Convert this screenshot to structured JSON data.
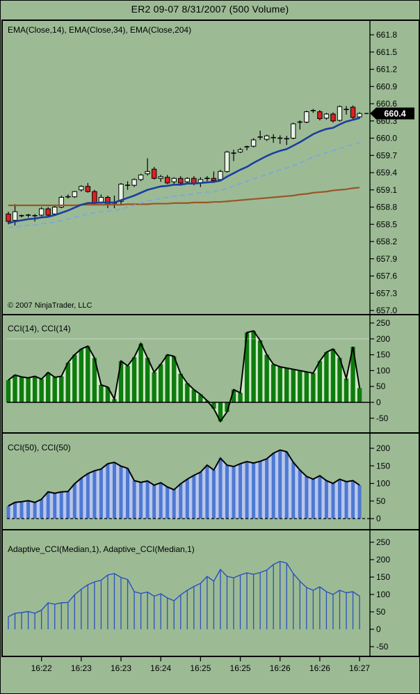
{
  "title": "ER2 09-07  8/31/2007  (500 Volume)",
  "price_panel": {
    "label": "EMA(Close,14), EMA(Close,34), EMA(Close,204)",
    "copyright": "© 2007 NinjaTrader, LLC",
    "last_price_label": "660.4"
  },
  "cci14_panel": {
    "label": "CCI(14), CCI(14)"
  },
  "cci50_panel": {
    "label": "CCI(50), CCI(50)"
  },
  "adaptive_panel": {
    "label": "Adaptive_CCI(Median,1), Adaptive_CCI(Median,1)"
  },
  "x_axis": {
    "labels": [
      "16:22",
      "16:23",
      "16:23",
      "16:24",
      "16:25",
      "16:25",
      "16:26",
      "16:26",
      "16:27"
    ],
    "tick_bars": [
      5,
      11,
      17,
      23,
      29,
      35,
      41,
      47,
      53
    ]
  },
  "colors": {
    "background": "#9cbb95",
    "candle_up": "#e8f3e5",
    "candle_down": "#dd2222",
    "outline": "#000000",
    "ema14": "#1a3e9e",
    "ema34": "#7fa8d9",
    "ema204": "#9a5526",
    "cci14_bar": "#0e7c0e",
    "cci14_area": "#cfe8c6",
    "cci50_bar": "#4d79d2",
    "cci50_area": "#b9c6ea",
    "adaptive": "#2a4fc0",
    "marker_bg": "#000000",
    "marker_text": "#ffffff"
  },
  "chart_data": [
    {
      "type": "candlestick",
      "title": "ER2 09-07 price with EMAs",
      "ylim": [
        657.0,
        661.8
      ],
      "yticks": [
        661.8,
        661.5,
        661.2,
        660.9,
        660.6,
        660.3,
        660.0,
        659.7,
        659.4,
        659.1,
        658.8,
        658.5,
        658.2,
        657.9,
        657.6,
        657.3,
        657.0
      ],
      "last_price": 660.4,
      "candles": [
        [
          658.68,
          658.72,
          658.5,
          658.55
        ],
        [
          658.57,
          658.85,
          658.48,
          658.72
        ],
        [
          658.65,
          658.67,
          658.62,
          658.65
        ],
        [
          658.65,
          658.68,
          658.62,
          658.66
        ],
        [
          658.66,
          658.68,
          658.55,
          658.65
        ],
        [
          658.66,
          658.8,
          658.64,
          658.77
        ],
        [
          658.77,
          658.8,
          658.63,
          658.66
        ],
        [
          658.68,
          658.82,
          658.66,
          658.8
        ],
        [
          658.8,
          659.0,
          658.78,
          658.97
        ],
        [
          658.98,
          659.02,
          658.95,
          658.98
        ],
        [
          658.98,
          659.08,
          658.96,
          659.07
        ],
        [
          659.1,
          659.18,
          659.07,
          659.16
        ],
        [
          659.16,
          659.22,
          659.05,
          659.07
        ],
        [
          659.07,
          659.1,
          658.85,
          658.88
        ],
        [
          658.88,
          659.02,
          658.86,
          658.97
        ],
        [
          658.97,
          659.0,
          658.78,
          658.84
        ],
        [
          658.86,
          659.0,
          658.78,
          658.87
        ],
        [
          658.9,
          659.22,
          658.85,
          659.2
        ],
        [
          659.2,
          659.25,
          659.1,
          659.18
        ],
        [
          659.18,
          659.3,
          659.15,
          659.28
        ],
        [
          659.28,
          659.38,
          659.25,
          659.36
        ],
        [
          659.38,
          659.65,
          659.35,
          659.42
        ],
        [
          659.46,
          659.5,
          659.28,
          659.3
        ],
        [
          659.3,
          659.36,
          659.24,
          659.33
        ],
        [
          659.32,
          659.36,
          659.2,
          659.22
        ],
        [
          659.24,
          659.32,
          659.2,
          659.3
        ],
        [
          659.3,
          659.34,
          659.2,
          659.22
        ],
        [
          659.24,
          659.32,
          659.2,
          659.3
        ],
        [
          659.3,
          659.34,
          659.18,
          659.21
        ],
        [
          659.22,
          659.32,
          659.15,
          659.28
        ],
        [
          659.28,
          659.34,
          659.25,
          659.3
        ],
        [
          659.3,
          659.42,
          659.22,
          659.26
        ],
        [
          659.28,
          659.45,
          659.26,
          659.42
        ],
        [
          659.42,
          659.78,
          659.4,
          659.76
        ],
        [
          659.76,
          659.8,
          659.6,
          659.74
        ],
        [
          659.76,
          659.83,
          659.74,
          659.8
        ],
        [
          659.82,
          659.87,
          659.79,
          659.85
        ],
        [
          659.86,
          660.0,
          659.84,
          659.97
        ],
        [
          660.0,
          660.13,
          659.97,
          660.02
        ],
        [
          659.98,
          660.06,
          659.95,
          660.04
        ],
        [
          660.04,
          660.07,
          659.92,
          660.01
        ],
        [
          660.02,
          660.05,
          659.9,
          660.0
        ],
        [
          660.0,
          660.04,
          659.88,
          659.99
        ],
        [
          660.0,
          660.27,
          659.98,
          660.25
        ],
        [
          660.26,
          660.31,
          660.15,
          660.28
        ],
        [
          660.28,
          660.48,
          660.26,
          660.46
        ],
        [
          660.47,
          660.51,
          660.44,
          660.48
        ],
        [
          660.46,
          660.49,
          660.31,
          660.34
        ],
        [
          660.35,
          660.44,
          660.32,
          660.42
        ],
        [
          660.42,
          660.45,
          660.27,
          660.3
        ],
        [
          660.31,
          660.57,
          660.29,
          660.55
        ],
        [
          660.53,
          660.56,
          660.41,
          660.5
        ],
        [
          660.54,
          660.57,
          660.33,
          660.36
        ],
        [
          660.37,
          660.45,
          660.34,
          660.43
        ]
      ],
      "series": [
        {
          "name": "EMA(Close,14)",
          "values": [
            658.52,
            658.55,
            658.57,
            658.59,
            658.6,
            658.62,
            658.63,
            658.66,
            658.7,
            658.74,
            658.79,
            658.84,
            658.87,
            658.87,
            658.88,
            658.88,
            658.88,
            658.92,
            658.96,
            659.0,
            659.05,
            659.1,
            659.13,
            659.16,
            659.17,
            659.19,
            659.19,
            659.21,
            659.21,
            659.22,
            659.23,
            659.24,
            659.26,
            659.33,
            659.39,
            659.45,
            659.5,
            659.57,
            659.63,
            659.69,
            659.74,
            659.78,
            659.81,
            659.87,
            659.93,
            660.0,
            660.07,
            660.12,
            660.16,
            660.18,
            660.24,
            660.29,
            660.32,
            660.35
          ]
        },
        {
          "name": "EMA(Close,34)",
          "values": [
            658.44,
            658.46,
            658.47,
            658.48,
            658.49,
            658.51,
            658.52,
            658.54,
            658.56,
            658.59,
            658.62,
            658.65,
            658.68,
            658.7,
            658.72,
            658.73,
            658.74,
            658.77,
            658.8,
            658.83,
            658.87,
            658.9,
            658.93,
            658.95,
            658.97,
            658.99,
            659.0,
            659.02,
            659.03,
            659.05,
            659.06,
            659.07,
            659.09,
            659.13,
            659.17,
            659.21,
            659.25,
            659.29,
            659.33,
            659.37,
            659.41,
            659.45,
            659.48,
            659.52,
            659.57,
            659.62,
            659.67,
            659.71,
            659.75,
            659.78,
            659.82,
            659.86,
            659.89,
            659.92
          ]
        },
        {
          "name": "EMA(Close,204)",
          "values": [
            658.83,
            658.83,
            658.83,
            658.83,
            658.83,
            658.83,
            658.83,
            658.83,
            658.83,
            658.83,
            658.83,
            658.84,
            658.84,
            658.84,
            658.84,
            658.84,
            658.84,
            658.84,
            658.85,
            658.85,
            658.85,
            658.85,
            658.86,
            658.86,
            658.86,
            658.87,
            658.87,
            658.87,
            658.88,
            658.88,
            658.88,
            658.89,
            658.89,
            658.9,
            658.91,
            658.92,
            658.93,
            658.94,
            658.95,
            658.96,
            658.97,
            658.98,
            658.99,
            659.0,
            659.02,
            659.03,
            659.05,
            659.06,
            659.07,
            659.09,
            659.1,
            659.11,
            659.13,
            659.14
          ]
        }
      ]
    },
    {
      "type": "bar",
      "title": "CCI(14)",
      "ylim": [
        -75,
        265
      ],
      "yticks": [
        250,
        200,
        150,
        100,
        50,
        0,
        -50
      ],
      "level_line": 200,
      "values": [
        70,
        86,
        80,
        77,
        82,
        73,
        94,
        79,
        82,
        125,
        150,
        168,
        177,
        140,
        55,
        48,
        10,
        130,
        115,
        142,
        185,
        140,
        95,
        120,
        150,
        145,
        90,
        60,
        40,
        25,
        5,
        -20,
        -60,
        -30,
        40,
        30,
        220,
        225,
        195,
        150,
        120,
        112,
        108,
        104,
        100,
        96,
        92,
        130,
        158,
        168,
        140,
        75,
        175,
        45
      ]
    },
    {
      "type": "bar",
      "title": "CCI(50)",
      "ylim": [
        -30,
        240
      ],
      "yticks": [
        200,
        150,
        100,
        50,
        0
      ],
      "values": [
        36,
        46,
        48,
        51,
        46,
        55,
        76,
        72,
        76,
        77,
        99,
        115,
        128,
        136,
        141,
        156,
        160,
        149,
        143,
        108,
        103,
        107,
        95,
        102,
        90,
        82,
        99,
        112,
        123,
        132,
        152,
        138,
        172,
        152,
        148,
        156,
        162,
        158,
        163,
        170,
        186,
        195,
        190,
        160,
        138,
        120,
        112,
        122,
        108,
        100,
        112,
        105,
        108,
        95
      ]
    },
    {
      "type": "bar",
      "title": "Adaptive_CCI(Median,1)",
      "ylim": [
        -75,
        285
      ],
      "yticks": [
        250,
        200,
        150,
        100,
        50,
        0,
        -50
      ],
      "values": [
        36,
        46,
        48,
        51,
        46,
        55,
        76,
        72,
        76,
        77,
        99,
        115,
        128,
        136,
        141,
        156,
        160,
        149,
        143,
        108,
        103,
        107,
        95,
        102,
        90,
        82,
        99,
        112,
        123,
        132,
        152,
        138,
        172,
        152,
        148,
        156,
        162,
        158,
        163,
        170,
        186,
        195,
        190,
        160,
        138,
        120,
        112,
        122,
        108,
        100,
        112,
        105,
        108,
        95
      ]
    }
  ]
}
